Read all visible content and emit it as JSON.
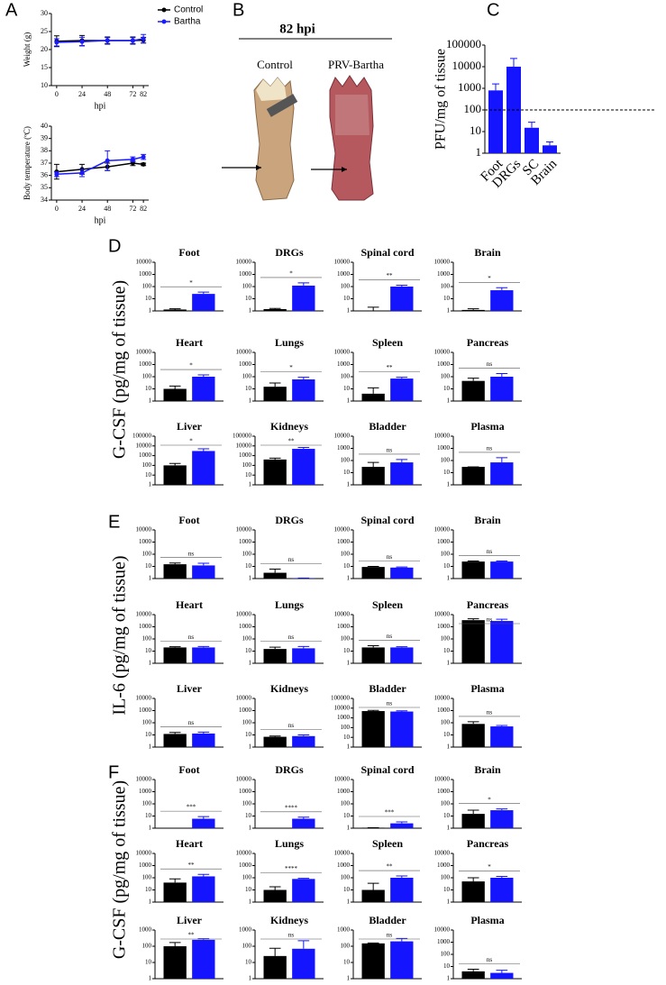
{
  "panel_labels": [
    "A",
    "B",
    "C"
  ],
  "photo": {
    "title": "82 hpi",
    "labels": [
      "Control",
      "PRV-Bartha"
    ]
  },
  "groups": [
    {
      "label": "D",
      "ylabel": "G-CSF (pg/mg of tissue)"
    },
    {
      "label": "E",
      "ylabel": "IL-6 (pg/mg of tissue)"
    },
    {
      "label": "F",
      "ylabel": "G-CSF (pg/mg of tissue)"
    }
  ],
  "chart_data": [
    {
      "type": "line",
      "ylabel": "Weight (g)",
      "xlabel": "hpi",
      "x": [
        0,
        24,
        48,
        72,
        82
      ],
      "xlim": [
        -5,
        87
      ],
      "xticks": [
        0,
        24,
        48,
        72,
        82
      ],
      "ylim": [
        10,
        30
      ],
      "yticks": [
        10,
        15,
        20,
        25,
        30
      ],
      "legend": "upper right",
      "series": [
        {
          "name": "Control",
          "color": "#000000",
          "values": [
            22.3,
            22.5,
            22.5,
            22.5,
            22.6
          ],
          "errors": [
            1.5,
            1.4,
            1.0,
            1.0,
            0.8
          ]
        },
        {
          "name": "Bartha",
          "color": "#1a1aff",
          "values": [
            22.0,
            22.2,
            22.5,
            22.5,
            23.0
          ],
          "errors": [
            1.0,
            1.2,
            0.8,
            0.8,
            1.2
          ]
        }
      ]
    },
    {
      "type": "line",
      "ylabel": "Body temperature (ºC)",
      "xlabel": "hpi",
      "x": [
        0,
        24,
        48,
        72,
        82
      ],
      "xlim": [
        -5,
        87
      ],
      "xticks": [
        0,
        24,
        48,
        72,
        82
      ],
      "ylim": [
        34,
        40
      ],
      "yticks": [
        34,
        35,
        36,
        37,
        38,
        39,
        40
      ],
      "series": [
        {
          "color": "#000000",
          "values": [
            36.3,
            36.5,
            36.7,
            37.0,
            36.9
          ],
          "errors": [
            0.6,
            0.4,
            0.3,
            0.2,
            0.1
          ]
        },
        {
          "color": "#1a1aff",
          "values": [
            36.1,
            36.2,
            37.2,
            37.3,
            37.5
          ],
          "errors": [
            0.2,
            0.3,
            0.8,
            0.2,
            0.2
          ]
        }
      ]
    },
    {
      "type": "bar",
      "log": true,
      "ylabel": "PFU/mg of tissue",
      "categories": [
        "Foot",
        "DRGs",
        "SC",
        "Brain"
      ],
      "values": [
        800,
        10000,
        15,
        2.3
      ],
      "errors": [
        800,
        14000,
        12,
        1
      ],
      "color": "#1414ff",
      "threshold": 100,
      "ylim": [
        1,
        100000
      ],
      "yticks": [
        1,
        10,
        100,
        1000,
        10000,
        100000
      ]
    },
    {
      "type": "bar",
      "log": true,
      "title": "Foot",
      "values": [
        1.3,
        25
      ],
      "errors": [
        0.2,
        10
      ],
      "colors": [
        "#000000",
        "#1414ff"
      ],
      "annotation": "*",
      "ylim": [
        1,
        10000
      ],
      "yticks": [
        1,
        10,
        100,
        1000,
        10000
      ]
    },
    {
      "type": "bar",
      "log": true,
      "title": "DRGs",
      "values": [
        1.4,
        120
      ],
      "errors": [
        0.2,
        80
      ],
      "colors": [
        "#000000",
        "#1414ff"
      ],
      "annotation": "*",
      "ylim": [
        1,
        10000
      ],
      "yticks": [
        1,
        10,
        100,
        1000,
        10000
      ]
    },
    {
      "type": "bar",
      "log": true,
      "title": "Spinal cord",
      "values": [
        1,
        100
      ],
      "errors": [
        1,
        30
      ],
      "colors": [
        "#000000",
        "#1414ff"
      ],
      "annotation": "**",
      "ylim": [
        1,
        10000
      ],
      "yticks": [
        1,
        10,
        100,
        1000,
        10000
      ]
    },
    {
      "type": "bar",
      "log": true,
      "title": "Brain",
      "values": [
        1.2,
        50
      ],
      "errors": [
        0.3,
        30
      ],
      "colors": [
        "#000000",
        "#1414ff"
      ],
      "annotation": "*",
      "ylim": [
        1,
        10000
      ],
      "yticks": [
        1,
        10,
        100,
        1000,
        10000
      ]
    },
    {
      "type": "bar",
      "log": true,
      "title": "Heart",
      "values": [
        10,
        100
      ],
      "errors": [
        7,
        40
      ],
      "colors": [
        "#000000",
        "#1414ff"
      ],
      "annotation": "*",
      "ylim": [
        1,
        10000
      ],
      "yticks": [
        1,
        10,
        100,
        1000,
        10000
      ]
    },
    {
      "type": "bar",
      "log": true,
      "title": "Lungs",
      "values": [
        15,
        60
      ],
      "errors": [
        15,
        30
      ],
      "colors": [
        "#000000",
        "#1414ff"
      ],
      "annotation": "*",
      "ylim": [
        1,
        10000
      ],
      "yticks": [
        1,
        10,
        100,
        1000,
        10000
      ]
    },
    {
      "type": "bar",
      "log": true,
      "title": "Spleen",
      "values": [
        4,
        70
      ],
      "errors": [
        8,
        20
      ],
      "colors": [
        "#000000",
        "#1414ff"
      ],
      "annotation": "**",
      "ylim": [
        1,
        10000
      ],
      "yticks": [
        1,
        10,
        100,
        1000,
        10000
      ]
    },
    {
      "type": "bar",
      "log": true,
      "title": "Pancreas",
      "values": [
        45,
        100
      ],
      "errors": [
        30,
        80
      ],
      "colors": [
        "#000000",
        "#1414ff"
      ],
      "annotation": "ns",
      "ylim": [
        1,
        10000
      ],
      "yticks": [
        1,
        10,
        100,
        1000,
        10000
      ]
    },
    {
      "type": "bar",
      "log": true,
      "title": "Liver",
      "values": [
        100,
        3000
      ],
      "errors": [
        60,
        2000
      ],
      "colors": [
        "#000000",
        "#1414ff"
      ],
      "annotation": "*",
      "ylim": [
        1,
        100000
      ],
      "yticks": [
        1,
        10,
        100,
        1000,
        10000,
        100000
      ]
    },
    {
      "type": "bar",
      "log": true,
      "title": "Kidneys",
      "values": [
        400,
        5000
      ],
      "errors": [
        150,
        2000
      ],
      "colors": [
        "#000000",
        "#1414ff"
      ],
      "annotation": "**",
      "ylim": [
        1,
        100000
      ],
      "yticks": [
        1,
        10,
        100,
        1000,
        10000,
        100000
      ]
    },
    {
      "type": "bar",
      "log": true,
      "title": "Bladder",
      "values": [
        30,
        70
      ],
      "errors": [
        40,
        50
      ],
      "colors": [
        "#000000",
        "#1414ff"
      ],
      "annotation": "ns",
      "ylim": [
        1,
        10000
      ],
      "yticks": [
        1,
        10,
        100,
        1000,
        10000
      ]
    },
    {
      "type": "bar",
      "log": true,
      "title": "Plasma",
      "values": [
        30,
        70
      ],
      "errors": [
        0,
        100
      ],
      "colors": [
        "#000000",
        "#1414ff"
      ],
      "annotation": "ns",
      "ylim": [
        1,
        10000
      ],
      "yticks": [
        1,
        10,
        100,
        1000,
        10000
      ]
    },
    {
      "type": "bar",
      "log": true,
      "title": "Foot",
      "values": [
        15,
        12
      ],
      "errors": [
        4,
        6
      ],
      "colors": [
        "#000000",
        "#1414ff"
      ],
      "annotation": "ns",
      "ylim": [
        1,
        10000
      ],
      "yticks": [
        1,
        10,
        100,
        1000,
        10000
      ]
    },
    {
      "type": "bar",
      "log": true,
      "title": "DRGs",
      "values": [
        3,
        1.1
      ],
      "errors": [
        3,
        0
      ],
      "colors": [
        "#000000",
        "#1414ff"
      ],
      "annotation": "ns",
      "ylim": [
        1,
        10000
      ],
      "yticks": [
        1,
        10,
        100,
        1000,
        10000
      ]
    },
    {
      "type": "bar",
      "log": true,
      "title": "Spinal cord",
      "values": [
        9,
        8
      ],
      "errors": [
        1,
        1
      ],
      "colors": [
        "#000000",
        "#1414ff"
      ],
      "annotation": "ns",
      "ylim": [
        1,
        10000
      ],
      "yticks": [
        1,
        10,
        100,
        1000,
        10000
      ]
    },
    {
      "type": "bar",
      "log": true,
      "title": "Brain",
      "values": [
        25,
        25
      ],
      "errors": [
        3,
        3
      ],
      "colors": [
        "#000000",
        "#1414ff"
      ],
      "annotation": "ns",
      "ylim": [
        1,
        10000
      ],
      "yticks": [
        1,
        10,
        100,
        1000,
        10000
      ]
    },
    {
      "type": "bar",
      "log": true,
      "title": "Heart",
      "values": [
        20,
        20
      ],
      "errors": [
        3,
        4
      ],
      "colors": [
        "#000000",
        "#1414ff"
      ],
      "annotation": "ns",
      "ylim": [
        1,
        10000
      ],
      "yticks": [
        1,
        10,
        100,
        1000,
        10000
      ]
    },
    {
      "type": "bar",
      "log": true,
      "title": "Lungs",
      "values": [
        15,
        17
      ],
      "errors": [
        6,
        7
      ],
      "colors": [
        "#000000",
        "#1414ff"
      ],
      "annotation": "ns",
      "ylim": [
        1,
        10000
      ],
      "yticks": [
        1,
        10,
        100,
        1000,
        10000
      ]
    },
    {
      "type": "bar",
      "log": true,
      "title": "Spleen",
      "values": [
        20,
        20
      ],
      "errors": [
        8,
        3
      ],
      "colors": [
        "#000000",
        "#1414ff"
      ],
      "annotation": "ns",
      "ylim": [
        1,
        10000
      ],
      "yticks": [
        1,
        10,
        100,
        1000,
        10000
      ]
    },
    {
      "type": "bar",
      "log": true,
      "title": "Pancreas",
      "values": [
        3500,
        3000
      ],
      "errors": [
        1000,
        1200
      ],
      "colors": [
        "#000000",
        "#1414ff"
      ],
      "annotation": "ns",
      "ylim": [
        1,
        10000
      ],
      "yticks": [
        1,
        10,
        100,
        1000,
        10000
      ]
    },
    {
      "type": "bar",
      "log": true,
      "title": "Liver",
      "values": [
        12,
        13
      ],
      "errors": [
        4,
        4
      ],
      "colors": [
        "#000000",
        "#1414ff"
      ],
      "annotation": "ns",
      "ylim": [
        1,
        10000
      ],
      "yticks": [
        1,
        10,
        100,
        1000,
        10000
      ]
    },
    {
      "type": "bar",
      "log": true,
      "title": "Kidneys",
      "values": [
        7,
        8
      ],
      "errors": [
        1,
        2
      ],
      "colors": [
        "#000000",
        "#1414ff"
      ],
      "annotation": "ns",
      "ylim": [
        1,
        10000
      ],
      "yticks": [
        1,
        10,
        100,
        1000,
        10000
      ]
    },
    {
      "type": "bar",
      "log": true,
      "title": "Bladder",
      "values": [
        5000,
        4500
      ],
      "errors": [
        1000,
        800
      ],
      "colors": [
        "#000000",
        "#1414ff"
      ],
      "annotation": "ns",
      "ylim": [
        1,
        100000
      ],
      "yticks": [
        1,
        10,
        100,
        1000,
        10000,
        100000
      ]
    },
    {
      "type": "bar",
      "log": true,
      "title": "Plasma",
      "values": [
        80,
        50
      ],
      "errors": [
        40,
        10
      ],
      "colors": [
        "#000000",
        "#1414ff"
      ],
      "annotation": "ns",
      "ylim": [
        1,
        10000
      ],
      "yticks": [
        1,
        10,
        100,
        1000,
        10000
      ]
    },
    {
      "type": "bar",
      "log": true,
      "title": "Foot",
      "values": [
        1,
        6
      ],
      "errors": [
        0,
        3
      ],
      "colors": [
        "#000000",
        "#1414ff"
      ],
      "annotation": "***",
      "ylim": [
        1,
        10000
      ],
      "yticks": [
        1,
        10,
        100,
        1000,
        10000
      ]
    },
    {
      "type": "bar",
      "log": true,
      "title": "DRGs",
      "values": [
        1,
        6
      ],
      "errors": [
        0,
        2
      ],
      "colors": [
        "#000000",
        "#1414ff"
      ],
      "annotation": "****",
      "ylim": [
        1,
        10000
      ],
      "yticks": [
        1,
        10,
        100,
        1000,
        10000
      ]
    },
    {
      "type": "bar",
      "log": true,
      "title": "Spinal cord",
      "values": [
        1.1,
        2.5
      ],
      "errors": [
        0,
        0.8
      ],
      "colors": [
        "#000000",
        "#1414ff"
      ],
      "annotation": "***",
      "ylim": [
        1,
        10000
      ],
      "yticks": [
        1,
        10,
        100,
        1000,
        10000
      ]
    },
    {
      "type": "bar",
      "log": true,
      "title": "Brain",
      "values": [
        15,
        30
      ],
      "errors": [
        15,
        8
      ],
      "colors": [
        "#000000",
        "#1414ff"
      ],
      "annotation": "*",
      "ylim": [
        1,
        10000
      ],
      "yticks": [
        1,
        10,
        100,
        1000,
        10000
      ]
    },
    {
      "type": "bar",
      "log": true,
      "title": "Heart",
      "values": [
        40,
        130
      ],
      "errors": [
        40,
        60
      ],
      "colors": [
        "#000000",
        "#1414ff"
      ],
      "annotation": "**",
      "ylim": [
        1,
        10000
      ],
      "yticks": [
        1,
        10,
        100,
        1000,
        10000
      ]
    },
    {
      "type": "bar",
      "log": true,
      "title": "Lungs",
      "values": [
        10,
        80
      ],
      "errors": [
        8,
        10
      ],
      "colors": [
        "#000000",
        "#1414ff"
      ],
      "annotation": "****",
      "ylim": [
        1,
        10000
      ],
      "yticks": [
        1,
        10,
        100,
        1000,
        10000
      ]
    },
    {
      "type": "bar",
      "log": true,
      "title": "Spleen",
      "values": [
        10,
        100
      ],
      "errors": [
        25,
        40
      ],
      "colors": [
        "#000000",
        "#1414ff"
      ],
      "annotation": "**",
      "ylim": [
        1,
        10000
      ],
      "yticks": [
        1,
        10,
        100,
        1000,
        10000
      ]
    },
    {
      "type": "bar",
      "log": true,
      "title": "Pancreas",
      "values": [
        50,
        100
      ],
      "errors": [
        50,
        30
      ],
      "colors": [
        "#000000",
        "#1414ff"
      ],
      "annotation": "*",
      "ylim": [
        1,
        10000
      ],
      "yticks": [
        1,
        10,
        100,
        1000,
        10000
      ]
    },
    {
      "type": "bar",
      "log": true,
      "title": "Liver",
      "values": [
        100,
        250
      ],
      "errors": [
        70,
        40
      ],
      "colors": [
        "#000000",
        "#1414ff"
      ],
      "annotation": "**",
      "ylim": [
        1,
        1000
      ],
      "yticks": [
        1,
        10,
        100,
        1000
      ]
    },
    {
      "type": "bar",
      "log": true,
      "title": "Kidneys",
      "values": [
        25,
        70
      ],
      "errors": [
        50,
        150
      ],
      "colors": [
        "#000000",
        "#1414ff"
      ],
      "annotation": "ns",
      "ylim": [
        1,
        1000
      ],
      "yticks": [
        1,
        10,
        100,
        1000
      ]
    },
    {
      "type": "bar",
      "log": true,
      "title": "Bladder",
      "values": [
        150,
        200
      ],
      "errors": [
        10,
        100
      ],
      "colors": [
        "#000000",
        "#1414ff"
      ],
      "annotation": "ns",
      "ylim": [
        1,
        1000
      ],
      "yticks": [
        1,
        10,
        100,
        1000
      ]
    },
    {
      "type": "bar",
      "log": true,
      "title": "Plasma",
      "values": [
        4,
        3
      ],
      "errors": [
        2,
        2
      ],
      "colors": [
        "#000000",
        "#1414ff"
      ],
      "annotation": "ns",
      "ylim": [
        1,
        10000
      ],
      "yticks": [
        1,
        10,
        100,
        1000,
        10000
      ]
    }
  ]
}
